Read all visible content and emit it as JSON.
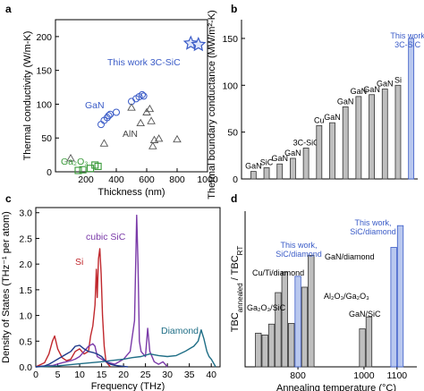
{
  "chart_data": [
    {
      "panel": "a",
      "type": "scatter",
      "xlabel": "Thickness (nm)",
      "ylabel": "Thermal conductivity (W/m-K)",
      "xlim": [
        0,
        1000
      ],
      "ylim": [
        0,
        225
      ],
      "xticks": [
        200,
        400,
        600,
        800,
        1000
      ],
      "yticks": [
        0,
        50,
        100,
        150,
        200
      ],
      "series": [
        {
          "name": "GaN",
          "marker": "circle",
          "color": "#3a5bc7",
          "x": [
            300,
            320,
            340,
            350,
            360,
            400,
            500,
            530,
            550,
            570,
            580
          ],
          "y": [
            70,
            76,
            80,
            83,
            85,
            88,
            104,
            108,
            111,
            114,
            112
          ]
        },
        {
          "name": "AlN",
          "marker": "triangle",
          "color": "#555555",
          "x": [
            100,
            320,
            500,
            560,
            600,
            620,
            630,
            640,
            650,
            680,
            800
          ],
          "y": [
            20,
            42,
            95,
            72,
            88,
            93,
            75,
            38,
            47,
            49,
            48
          ]
        },
        {
          "name": "Ga2O3",
          "marker": "square",
          "color": "#3a9a3a",
          "x": [
            150,
            180,
            230,
            260,
            280
          ],
          "y": [
            2,
            3,
            5,
            10,
            8
          ]
        },
        {
          "name": "This work 3C-SiC",
          "marker": "star",
          "color": "#3a5bc7",
          "x": [
            890,
            940
          ],
          "y": [
            190,
            188
          ]
        }
      ],
      "annotations": {
        "this_work": "This work 3C-SiC",
        "gan": "GaN",
        "aln": "AlN",
        "ga2o3": "Ga₂O₃"
      }
    },
    {
      "panel": "b",
      "type": "bar",
      "ylabel": "Thermal boundary conductance (MW/m²-K)",
      "ylim": [
        0,
        170
      ],
      "yticks": [
        0,
        50,
        100,
        150
      ],
      "categories": [
        "GaN",
        "SiC",
        "GaN",
        "GaN",
        "3C-SiC",
        "Cu",
        "GaN",
        "GaN",
        "GaN",
        "GaN",
        "GaN",
        "Si",
        "This work 3C-SiC"
      ],
      "values": [
        8,
        12,
        16,
        22,
        33,
        57,
        60,
        77,
        88,
        90,
        96,
        100,
        150
      ],
      "colors": [
        "#bfbfbf",
        "#bfbfbf",
        "#bfbfbf",
        "#bfbfbf",
        "#bfbfbf",
        "#bfbfbf",
        "#bfbfbf",
        "#bfbfbf",
        "#bfbfbf",
        "#bfbfbf",
        "#bfbfbf",
        "#bfbfbf",
        "#b9c8ef"
      ],
      "annotations": {
        "this_work_line1": "This work",
        "this_work_line2": "3C-SiC"
      }
    },
    {
      "panel": "c",
      "type": "line",
      "xlabel": "Frequency (THz)",
      "ylabel": "Density of States (THz⁻¹ per atom)",
      "xlim": [
        0,
        42
      ],
      "ylim": [
        0,
        3.1
      ],
      "xticks": [
        0,
        5,
        10,
        15,
        20,
        25,
        30,
        35,
        40
      ],
      "yticks": [
        0.0,
        0.5,
        1.0,
        1.5,
        2.0,
        2.5,
        3.0
      ],
      "series": [
        {
          "name": "Si",
          "color": "#c0282d",
          "x": [
            0,
            2,
            3,
            3.8,
            4.3,
            5,
            6,
            7,
            8,
            9,
            10,
            11,
            12,
            12.5,
            13,
            13.5,
            13.8,
            14,
            14.3,
            14.6,
            14.9,
            15.2,
            15.6,
            16,
            17
          ],
          "y": [
            0,
            0.08,
            0.25,
            0.5,
            0.6,
            0.35,
            0.18,
            0.12,
            0.15,
            0.3,
            0.35,
            0.25,
            0.3,
            0.6,
            0.8,
            1.2,
            1.9,
            1.35,
            2.1,
            2.3,
            1.8,
            1.0,
            0.4,
            0.1,
            0
          ]
        },
        {
          "name": "cubic SiC",
          "color": "#7a3aa8",
          "x": [
            0,
            4,
            6,
            7,
            8,
            9,
            10,
            11,
            12,
            13,
            13.5,
            14,
            16,
            18,
            20,
            21.5,
            22.5,
            23,
            23.3,
            23.6,
            24,
            25,
            25.5,
            26,
            27,
            28,
            29,
            30
          ],
          "y": [
            0,
            0.03,
            0.08,
            0.1,
            0.12,
            0.15,
            0.2,
            0.3,
            0.4,
            0.45,
            0.4,
            0.2,
            0.1,
            0.05,
            0.15,
            0.3,
            0.9,
            2.95,
            2.0,
            0.5,
            0.3,
            0.2,
            0.75,
            0.3,
            0.1,
            0.05,
            0.1,
            0
          ]
        },
        {
          "name": "Diamond",
          "color": "#1f6e86",
          "x": [
            0,
            5,
            10,
            15,
            20,
            22,
            24,
            26,
            28,
            30,
            32,
            34,
            35,
            36,
            37,
            37.7,
            38.3,
            39,
            39.5,
            40,
            41
          ],
          "y": [
            0,
            0.02,
            0.06,
            0.1,
            0.15,
            0.18,
            0.2,
            0.25,
            0.22,
            0.2,
            0.22,
            0.3,
            0.35,
            0.4,
            0.5,
            0.72,
            0.55,
            0.3,
            0.2,
            0.15,
            0
          ]
        },
        {
          "name": "",
          "color": "#1f3a8a",
          "x": [
            0,
            2,
            3,
            4,
            5,
            6,
            7,
            8,
            9,
            10,
            11,
            12,
            13,
            14,
            15,
            16,
            17,
            18,
            19,
            20,
            21
          ],
          "y": [
            0,
            0.02,
            0.05,
            0.1,
            0.15,
            0.2,
            0.25,
            0.3,
            0.4,
            0.42,
            0.35,
            0.3,
            0.28,
            0.25,
            0.2,
            0.1,
            0.05,
            0.03,
            0.02,
            0.01,
            0
          ]
        }
      ],
      "annotations": {
        "cubic_sic": "cubic SiC",
        "si": "Si",
        "diamond": "Diamond"
      }
    },
    {
      "panel": "d",
      "type": "bar",
      "xlabel": "Annealing temperature (°C)",
      "ylabel": "TBC_annealed / TBC_RT",
      "xlim": [
        640,
        1160
      ],
      "ylim": [
        0,
        4.3
      ],
      "xticks": [
        800,
        1000,
        1100
      ],
      "bars": [
        {
          "x": 680,
          "value": 0.93,
          "color": "#bfbfbf"
        },
        {
          "x": 700,
          "value": 0.88,
          "color": "#bfbfbf"
        },
        {
          "x": 720,
          "value": 1.18,
          "color": "#bfbfbf"
        },
        {
          "x": 740,
          "value": 2.05,
          "color": "#bfbfbf"
        },
        {
          "x": 760,
          "value": 2.62,
          "color": "#bfbfbf"
        },
        {
          "x": 780,
          "value": 1.2,
          "color": "#bfbfbf"
        },
        {
          "x": 800,
          "value": 2.5,
          "color": "#b9c8ef"
        },
        {
          "x": 820,
          "value": 2.2,
          "color": "#bfbfbf"
        },
        {
          "x": 840,
          "value": 3.08,
          "color": "#bfbfbf"
        },
        {
          "x": 995,
          "value": 1.05,
          "color": "#bfbfbf"
        },
        {
          "x": 1015,
          "value": 1.38,
          "color": "#bfbfbf"
        },
        {
          "x": 1090,
          "value": 3.3,
          "color": "#b9c8ef"
        },
        {
          "x": 1110,
          "value": 3.9,
          "color": "#b9c8ef"
        }
      ],
      "annotations": {
        "ga2o3_sic": "Ga₂O₃/SiC",
        "cu_ti_diamond": "Cu/Ti/diamond",
        "this_work_1_l1": "This work,",
        "this_work_1_l2": "SiC/diamond",
        "gan_diamond": "GaN/diamond",
        "al2o3_ga2o3": "Al₂O₃/Ga₂O₃",
        "gan_sic": "GaN/SiC",
        "this_work_2_l1": "This work,",
        "this_work_2_l2": "SiC/diamond"
      }
    }
  ],
  "panel_labels": [
    "a",
    "b",
    "c",
    "d"
  ],
  "colors": {
    "blue_text": "#3a5bc7",
    "green": "#3a9a3a",
    "red": "#c0282d",
    "purple": "#7a3aa8",
    "teal": "#1f6e86"
  }
}
